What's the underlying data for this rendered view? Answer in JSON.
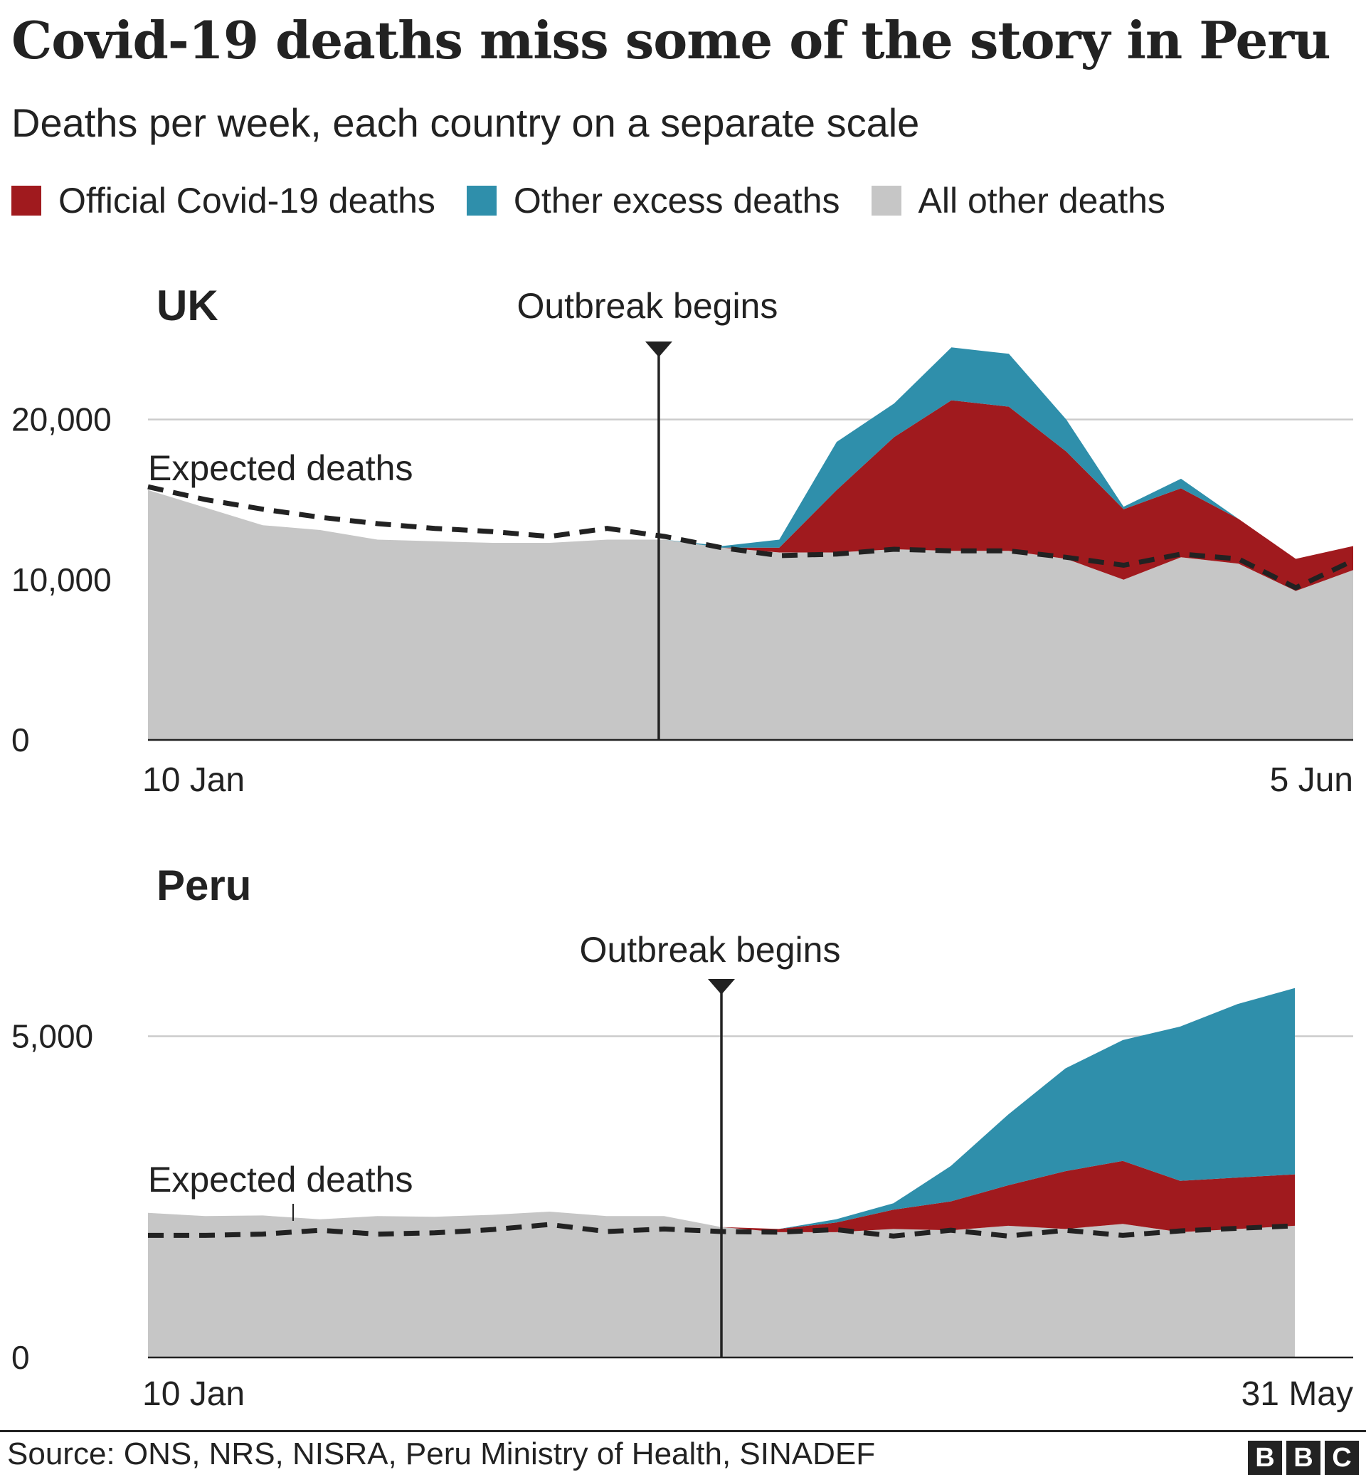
{
  "title": "Covid-19 deaths miss some of the story in Peru",
  "subtitle": "Deaths per week, each country on a separate scale",
  "legend": [
    {
      "label": "Official Covid-19 deaths",
      "color": "#a01a1e"
    },
    {
      "label": "Other excess deaths",
      "color": "#2f8fab"
    },
    {
      "label": "All other deaths",
      "color": "#c6c6c6"
    }
  ],
  "source": "Source: ONS, NRS, NISRA, Peru Ministry of Health, SINADEF",
  "logo": [
    "B",
    "B",
    "C"
  ],
  "colors": {
    "covid": "#a01a1e",
    "excess": "#2f8fab",
    "other": "#c6c6c6",
    "grid": "#cccccc",
    "text": "#222222"
  },
  "chart_data": [
    {
      "type": "area",
      "title": "UK",
      "x_start_label": "10 Jan",
      "x_end_label": "5 Jun",
      "yticks": [
        0,
        10000,
        20000
      ],
      "ytick_labels": [
        "0",
        "10,000",
        "20,000"
      ],
      "ylim": [
        0,
        25000
      ],
      "grid": true,
      "outbreak_label": "Outbreak begins",
      "outbreak_week": 8.9,
      "expected_label": "Expected deaths",
      "weeks": 21,
      "series": [
        {
          "name": "All other deaths",
          "values": [
            15600,
            14500,
            13400,
            13100,
            12500,
            12400,
            12300,
            12300,
            12500,
            12500,
            12000,
            11700,
            11700,
            11900,
            11800,
            11800,
            11300,
            10000,
            11400,
            11000,
            9300,
            10600
          ]
        },
        {
          "name": "Official Covid-19 deaths",
          "values": [
            0,
            0,
            0,
            0,
            0,
            0,
            0,
            0,
            0,
            0,
            0,
            300,
            3900,
            7000,
            9400,
            9000,
            6700,
            4400,
            4300,
            2800,
            2000,
            1500
          ]
        },
        {
          "name": "Other excess deaths",
          "values": [
            0,
            0,
            0,
            0,
            0,
            0,
            0,
            0,
            0,
            0,
            100,
            500,
            3000,
            2100,
            3300,
            3300,
            2000,
            150,
            600,
            0,
            0,
            0
          ]
        }
      ],
      "expected": [
        15800,
        15000,
        14400,
        13900,
        13500,
        13200,
        13000,
        12700,
        13200,
        12700,
        12000,
        11500,
        11600,
        11900,
        11800,
        11800,
        11400,
        10900,
        11600,
        11300,
        9500,
        11200
      ]
    },
    {
      "type": "area",
      "title": "Peru",
      "x_start_label": "10 Jan",
      "x_end_label": "31 May",
      "yticks": [
        0,
        5000
      ],
      "ytick_labels": [
        "0",
        "5,000"
      ],
      "ylim": [
        0,
        6500
      ],
      "grid": true,
      "outbreak_label": "Outbreak begins",
      "outbreak_week": 10,
      "expected_label": "Expected deaths",
      "weeks": 20,
      "series": [
        {
          "name": "All other deaths",
          "values": [
            2250,
            2200,
            2210,
            2150,
            2200,
            2190,
            2220,
            2270,
            2200,
            2200,
            2030,
            1950,
            1950,
            2000,
            1980,
            2050,
            2000,
            2080,
            1950,
            2000,
            2050
          ]
        },
        {
          "name": "Official Covid-19 deaths",
          "values": [
            0,
            0,
            0,
            0,
            0,
            0,
            0,
            0,
            0,
            0,
            0,
            50,
            150,
            300,
            450,
            630,
            900,
            980,
            800,
            800,
            800
          ]
        },
        {
          "name": "Other excess deaths",
          "values": [
            0,
            0,
            0,
            0,
            0,
            0,
            0,
            0,
            0,
            0,
            0,
            0,
            50,
            100,
            550,
            1100,
            1600,
            1880,
            2400,
            2700,
            2900
          ]
        }
      ],
      "expected": [
        1900,
        1900,
        1920,
        1980,
        1920,
        1940,
        1990,
        2070,
        1960,
        2000,
        1960,
        1950,
        1990,
        1890,
        1980,
        1890,
        1980,
        1900,
        1970,
        2010,
        2050
      ]
    }
  ]
}
